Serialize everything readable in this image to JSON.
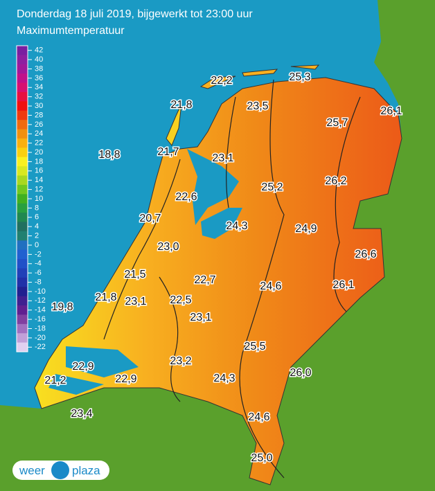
{
  "header": {
    "title": "Donderdag 18 juli 2019, bijgewerkt tot 23:00 uur",
    "subtitle": "Maximumtemperatuur"
  },
  "legend": {
    "ticks": [
      42,
      40,
      38,
      36,
      34,
      32,
      30,
      28,
      26,
      24,
      22,
      20,
      18,
      16,
      14,
      12,
      10,
      8,
      6,
      4,
      2,
      0,
      -2,
      -4,
      -6,
      -8,
      -10,
      -12,
      -14,
      -16,
      -18,
      -20,
      -22
    ],
    "colors": [
      "#7a1fa0",
      "#8e1fa0",
      "#a0189a",
      "#c0108a",
      "#d81070",
      "#e81040",
      "#f01010",
      "#f03a10",
      "#f06a10",
      "#f09010",
      "#f8b010",
      "#f8d010",
      "#f8f020",
      "#d8e820",
      "#a8d820",
      "#70c820",
      "#40b020",
      "#28a040",
      "#208850",
      "#207060",
      "#208070",
      "#2070c0",
      "#2060d0",
      "#2050c8",
      "#2040b8",
      "#2030a8",
      "#202090",
      "#402090",
      "#602090",
      "#8040a0",
      "#a070c0",
      "#c0a0d8",
      "#e0d0f0"
    ]
  },
  "stations": [
    "22,2",
    "25,3",
    "21,8",
    "23,5",
    "26,1",
    "25,7",
    "18,8",
    "21,7",
    "23,1",
    "25,2",
    "26,2",
    "22,6",
    "20,7",
    "24,3",
    "24,9",
    "23,0",
    "26,6",
    "21,5",
    "22,7",
    "24,6",
    "26,1",
    "21,8",
    "23,1",
    "22,5",
    "19,8",
    "23,1",
    "25,5",
    "22,9",
    "23,2",
    "26,0",
    "21,2",
    "22,9",
    "24,3",
    "23,4",
    "24,6",
    "25,0"
  ],
  "logo": {
    "left": "weer",
    "right": "plaza"
  }
}
